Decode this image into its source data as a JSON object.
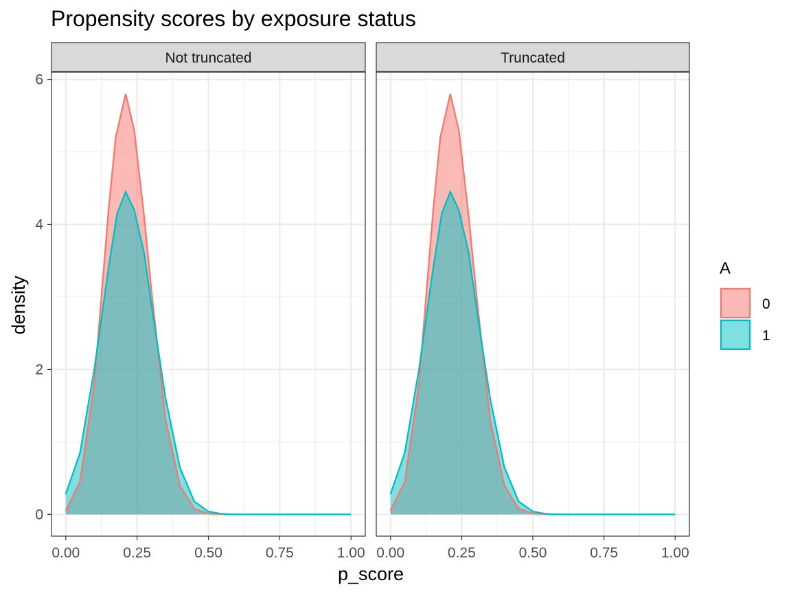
{
  "chart_data": {
    "type": "area",
    "title": "Propensity scores by exposure status",
    "xlabel": "p_score",
    "ylabel": "density",
    "xlim": [
      -0.05,
      1.05
    ],
    "ylim": [
      -0.3,
      6.1
    ],
    "x_ticks": [
      0,
      0.25,
      0.5,
      0.75,
      1.0
    ],
    "x_tick_labels": [
      "0.00",
      "0.25",
      "0.50",
      "0.75",
      "1.00"
    ],
    "y_ticks": [
      0,
      2,
      4,
      6
    ],
    "y_tick_labels": [
      "0",
      "2",
      "4",
      "6"
    ],
    "grid": true,
    "legend": {
      "title": "A",
      "position": "right",
      "entries": [
        {
          "label": "0",
          "fill": "#F8766D",
          "stroke": "#F8766D"
        },
        {
          "label": "1",
          "fill": "#00BFC4",
          "stroke": "#00BFC4"
        }
      ]
    },
    "panels": [
      {
        "label": "Not truncated",
        "series": [
          {
            "name": "0",
            "color": "#F8766D",
            "points": [
              [
                0.0,
                0.05
              ],
              [
                0.05,
                0.45
              ],
              [
                0.1,
                1.8
              ],
              [
                0.125,
                3.0
              ],
              [
                0.15,
                4.2
              ],
              [
                0.175,
                5.2
              ],
              [
                0.21,
                5.8
              ],
              [
                0.24,
                5.3
              ],
              [
                0.275,
                4.1
              ],
              [
                0.3,
                3.1
              ],
              [
                0.35,
                1.3
              ],
              [
                0.4,
                0.4
              ],
              [
                0.45,
                0.08
              ],
              [
                0.5,
                0.01
              ],
              [
                0.6,
                0.0
              ],
              [
                1.0,
                0.0
              ]
            ]
          },
          {
            "name": "1",
            "color": "#00BFC4",
            "points": [
              [
                0.0,
                0.28
              ],
              [
                0.05,
                0.85
              ],
              [
                0.1,
                2.0
              ],
              [
                0.15,
                3.4
              ],
              [
                0.18,
                4.15
              ],
              [
                0.21,
                4.45
              ],
              [
                0.24,
                4.2
              ],
              [
                0.275,
                3.6
              ],
              [
                0.3,
                2.9
              ],
              [
                0.35,
                1.6
              ],
              [
                0.4,
                0.65
              ],
              [
                0.45,
                0.18
              ],
              [
                0.5,
                0.04
              ],
              [
                0.55,
                0.005
              ],
              [
                0.6,
                0.0
              ],
              [
                1.0,
                0.0
              ]
            ]
          }
        ]
      },
      {
        "label": "Truncated",
        "series": [
          {
            "name": "0",
            "color": "#F8766D",
            "points": [
              [
                0.0,
                0.05
              ],
              [
                0.05,
                0.45
              ],
              [
                0.1,
                1.8
              ],
              [
                0.125,
                3.0
              ],
              [
                0.15,
                4.2
              ],
              [
                0.175,
                5.2
              ],
              [
                0.21,
                5.8
              ],
              [
                0.24,
                5.3
              ],
              [
                0.275,
                4.1
              ],
              [
                0.3,
                3.1
              ],
              [
                0.35,
                1.3
              ],
              [
                0.4,
                0.4
              ],
              [
                0.45,
                0.08
              ],
              [
                0.5,
                0.01
              ],
              [
                0.6,
                0.0
              ],
              [
                1.0,
                0.0
              ]
            ]
          },
          {
            "name": "1",
            "color": "#00BFC4",
            "points": [
              [
                0.0,
                0.28
              ],
              [
                0.05,
                0.85
              ],
              [
                0.1,
                2.0
              ],
              [
                0.15,
                3.4
              ],
              [
                0.18,
                4.15
              ],
              [
                0.21,
                4.45
              ],
              [
                0.24,
                4.2
              ],
              [
                0.275,
                3.6
              ],
              [
                0.3,
                2.9
              ],
              [
                0.35,
                1.6
              ],
              [
                0.4,
                0.65
              ],
              [
                0.45,
                0.18
              ],
              [
                0.5,
                0.04
              ],
              [
                0.55,
                0.005
              ],
              [
                0.6,
                0.0
              ],
              [
                1.0,
                0.0
              ]
            ]
          }
        ]
      }
    ]
  }
}
